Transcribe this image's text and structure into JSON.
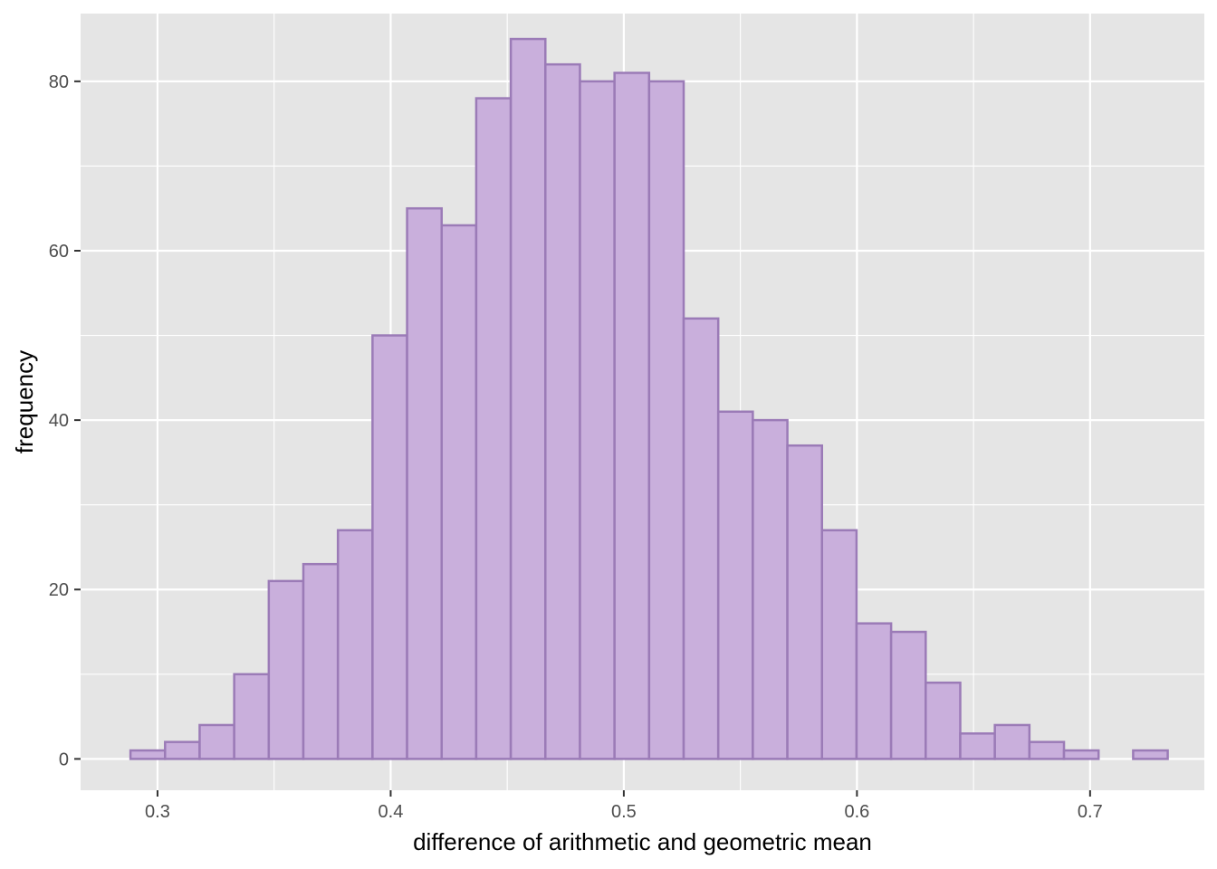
{
  "chart_data": {
    "type": "bar",
    "subtype": "histogram",
    "title": "",
    "xlabel": "difference of arithmetic and geometric mean",
    "ylabel": "frequency",
    "xlim": [
      0.267,
      0.749
    ],
    "ylim": [
      -3.7,
      88
    ],
    "x_ticks": [
      0.3,
      0.4,
      0.5,
      0.6,
      0.7
    ],
    "x_tick_labels": [
      "0.3",
      "0.4",
      "0.5",
      "0.6",
      "0.7"
    ],
    "y_ticks": [
      0,
      20,
      40,
      60,
      80
    ],
    "y_tick_labels": [
      "0",
      "20",
      "40",
      "60",
      "80"
    ],
    "grid": true,
    "bins": {
      "start": 0.2884,
      "width": 0.01483,
      "counts": [
        1,
        2,
        4,
        10,
        21,
        23,
        27,
        50,
        65,
        63,
        78,
        85,
        82,
        80,
        81,
        80,
        52,
        41,
        40,
        37,
        27,
        16,
        15,
        9,
        3,
        4,
        2,
        1,
        0,
        1
      ]
    },
    "colors": {
      "panel_background": "#e5e5e5",
      "grid": "#ffffff",
      "bar_fill": "#c9afdc",
      "bar_outline": "#9b7bb7",
      "tick_text": "#4d4d4d",
      "axis_title": "#000000"
    }
  }
}
